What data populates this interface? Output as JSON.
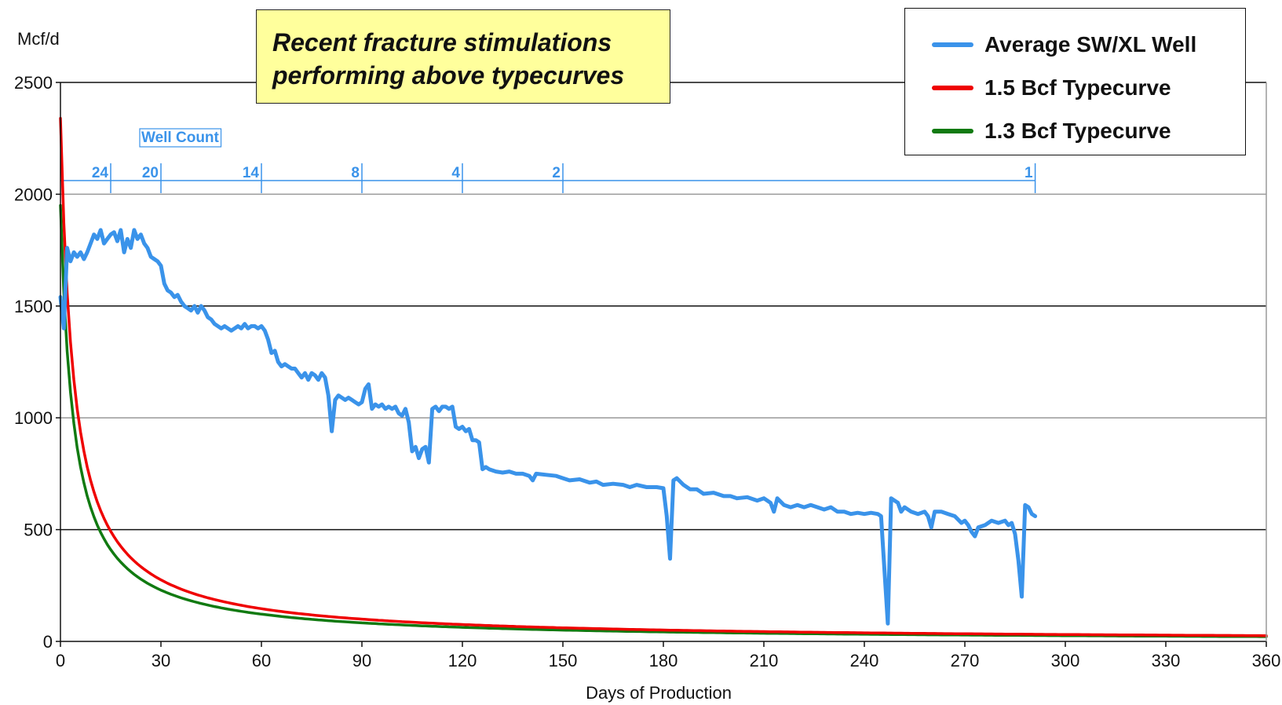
{
  "chart_data": {
    "type": "line",
    "title": "",
    "ylabel": "Mcf/d",
    "xlabel": "Days of Production",
    "xlim": [
      0,
      360
    ],
    "ylim": [
      0,
      2500
    ],
    "x_ticks": [
      0,
      30,
      60,
      90,
      120,
      150,
      180,
      210,
      240,
      270,
      300,
      330,
      360
    ],
    "y_ticks": [
      0,
      500,
      1000,
      1500,
      2000,
      2500
    ],
    "grid": true,
    "legend_position": "top-right",
    "annotation": [
      "Recent fracture stimulations",
      "performing above typecurves"
    ],
    "well_count": {
      "label": "Well Count",
      "ticks_x": [
        15,
        30,
        60,
        90,
        120,
        150,
        291
      ],
      "labels": [
        {
          "text": "24",
          "x": 15
        },
        {
          "text": "20",
          "x": 30
        },
        {
          "text": "14",
          "x": 60
        },
        {
          "text": "8",
          "x": 90
        },
        {
          "text": "4",
          "x": 120
        },
        {
          "text": "2",
          "x": 150
        },
        {
          "text": "1",
          "x": 291
        }
      ]
    },
    "series": [
      {
        "name": "Average SW/XL Well",
        "color": "#3a93ea",
        "points": [
          [
            0,
            1540
          ],
          [
            1,
            1400
          ],
          [
            2,
            1760
          ],
          [
            3,
            1700
          ],
          [
            4,
            1740
          ],
          [
            5,
            1720
          ],
          [
            6,
            1740
          ],
          [
            7,
            1710
          ],
          [
            8,
            1740
          ],
          [
            9,
            1780
          ],
          [
            10,
            1820
          ],
          [
            11,
            1800
          ],
          [
            12,
            1840
          ],
          [
            13,
            1780
          ],
          [
            14,
            1800
          ],
          [
            15,
            1820
          ],
          [
            16,
            1830
          ],
          [
            17,
            1790
          ],
          [
            18,
            1840
          ],
          [
            19,
            1740
          ],
          [
            20,
            1800
          ],
          [
            21,
            1760
          ],
          [
            22,
            1840
          ],
          [
            23,
            1800
          ],
          [
            24,
            1820
          ],
          [
            25,
            1780
          ],
          [
            26,
            1760
          ],
          [
            27,
            1720
          ],
          [
            28,
            1710
          ],
          [
            29,
            1700
          ],
          [
            30,
            1680
          ],
          [
            31,
            1600
          ],
          [
            32,
            1570
          ],
          [
            33,
            1560
          ],
          [
            34,
            1540
          ],
          [
            35,
            1550
          ],
          [
            36,
            1520
          ],
          [
            37,
            1500
          ],
          [
            38,
            1490
          ],
          [
            39,
            1480
          ],
          [
            40,
            1500
          ],
          [
            41,
            1470
          ],
          [
            42,
            1500
          ],
          [
            43,
            1480
          ],
          [
            44,
            1450
          ],
          [
            45,
            1440
          ],
          [
            46,
            1420
          ],
          [
            47,
            1410
          ],
          [
            48,
            1400
          ],
          [
            49,
            1410
          ],
          [
            50,
            1400
          ],
          [
            51,
            1390
          ],
          [
            52,
            1400
          ],
          [
            53,
            1410
          ],
          [
            54,
            1400
          ],
          [
            55,
            1420
          ],
          [
            56,
            1400
          ],
          [
            57,
            1410
          ],
          [
            58,
            1410
          ],
          [
            59,
            1400
          ],
          [
            60,
            1410
          ],
          [
            61,
            1390
          ],
          [
            62,
            1350
          ],
          [
            63,
            1290
          ],
          [
            64,
            1300
          ],
          [
            65,
            1250
          ],
          [
            66,
            1230
          ],
          [
            67,
            1240
          ],
          [
            68,
            1230
          ],
          [
            69,
            1220
          ],
          [
            70,
            1220
          ],
          [
            71,
            1200
          ],
          [
            72,
            1180
          ],
          [
            73,
            1200
          ],
          [
            74,
            1170
          ],
          [
            75,
            1200
          ],
          [
            76,
            1190
          ],
          [
            77,
            1170
          ],
          [
            78,
            1200
          ],
          [
            79,
            1180
          ],
          [
            80,
            1100
          ],
          [
            81,
            940
          ],
          [
            82,
            1080
          ],
          [
            83,
            1100
          ],
          [
            84,
            1090
          ],
          [
            85,
            1080
          ],
          [
            86,
            1090
          ],
          [
            87,
            1080
          ],
          [
            88,
            1070
          ],
          [
            89,
            1060
          ],
          [
            90,
            1070
          ],
          [
            91,
            1130
          ],
          [
            92,
            1150
          ],
          [
            93,
            1040
          ],
          [
            94,
            1060
          ],
          [
            95,
            1050
          ],
          [
            96,
            1060
          ],
          [
            97,
            1040
          ],
          [
            98,
            1050
          ],
          [
            99,
            1040
          ],
          [
            100,
            1050
          ],
          [
            101,
            1020
          ],
          [
            102,
            1010
          ],
          [
            103,
            1040
          ],
          [
            104,
            980
          ],
          [
            105,
            850
          ],
          [
            106,
            870
          ],
          [
            107,
            820
          ],
          [
            108,
            860
          ],
          [
            109,
            870
          ],
          [
            110,
            800
          ],
          [
            111,
            1040
          ],
          [
            112,
            1050
          ],
          [
            113,
            1030
          ],
          [
            114,
            1050
          ],
          [
            115,
            1050
          ],
          [
            116,
            1040
          ],
          [
            117,
            1050
          ],
          [
            118,
            960
          ],
          [
            119,
            950
          ],
          [
            120,
            960
          ],
          [
            121,
            940
          ],
          [
            122,
            950
          ],
          [
            123,
            900
          ],
          [
            124,
            900
          ],
          [
            125,
            890
          ],
          [
            126,
            770
          ],
          [
            127,
            780
          ],
          [
            128,
            770
          ],
          [
            130,
            760
          ],
          [
            132,
            755
          ],
          [
            134,
            760
          ],
          [
            136,
            750
          ],
          [
            138,
            750
          ],
          [
            140,
            740
          ],
          [
            141,
            720
          ],
          [
            142,
            750
          ],
          [
            145,
            745
          ],
          [
            148,
            740
          ],
          [
            150,
            730
          ],
          [
            152,
            720
          ],
          [
            155,
            725
          ],
          [
            158,
            710
          ],
          [
            160,
            715
          ],
          [
            162,
            700
          ],
          [
            165,
            705
          ],
          [
            168,
            700
          ],
          [
            170,
            690
          ],
          [
            172,
            700
          ],
          [
            175,
            690
          ],
          [
            178,
            690
          ],
          [
            180,
            685
          ],
          [
            181,
            560
          ],
          [
            182,
            370
          ],
          [
            183,
            720
          ],
          [
            184,
            730
          ],
          [
            186,
            700
          ],
          [
            188,
            680
          ],
          [
            190,
            680
          ],
          [
            192,
            660
          ],
          [
            195,
            665
          ],
          [
            198,
            650
          ],
          [
            200,
            650
          ],
          [
            202,
            640
          ],
          [
            205,
            645
          ],
          [
            208,
            630
          ],
          [
            210,
            640
          ],
          [
            212,
            620
          ],
          [
            213,
            580
          ],
          [
            214,
            640
          ],
          [
            216,
            610
          ],
          [
            218,
            600
          ],
          [
            220,
            610
          ],
          [
            222,
            600
          ],
          [
            224,
            610
          ],
          [
            226,
            600
          ],
          [
            228,
            590
          ],
          [
            230,
            600
          ],
          [
            232,
            580
          ],
          [
            234,
            580
          ],
          [
            236,
            570
          ],
          [
            238,
            575
          ],
          [
            240,
            570
          ],
          [
            242,
            575
          ],
          [
            244,
            570
          ],
          [
            245,
            560
          ],
          [
            246,
            320
          ],
          [
            247,
            80
          ],
          [
            248,
            640
          ],
          [
            249,
            630
          ],
          [
            250,
            620
          ],
          [
            251,
            580
          ],
          [
            252,
            600
          ],
          [
            254,
            580
          ],
          [
            256,
            570
          ],
          [
            258,
            580
          ],
          [
            259,
            560
          ],
          [
            260,
            510
          ],
          [
            261,
            580
          ],
          [
            263,
            580
          ],
          [
            265,
            570
          ],
          [
            267,
            560
          ],
          [
            269,
            530
          ],
          [
            270,
            540
          ],
          [
            271,
            520
          ],
          [
            272,
            490
          ],
          [
            273,
            470
          ],
          [
            274,
            510
          ],
          [
            276,
            520
          ],
          [
            278,
            540
          ],
          [
            280,
            530
          ],
          [
            282,
            540
          ],
          [
            283,
            520
          ],
          [
            284,
            530
          ],
          [
            285,
            480
          ],
          [
            286,
            360
          ],
          [
            287,
            200
          ],
          [
            288,
            610
          ],
          [
            289,
            600
          ],
          [
            290,
            570
          ],
          [
            291,
            560
          ]
        ]
      },
      {
        "name": "1.5 Bcf Typecurve",
        "color": "#ef0000",
        "model": {
          "qi": 2340,
          "b": 1.0,
          "Di": 0.25
        }
      },
      {
        "name": "1.3 Bcf Typecurve",
        "color": "#117a11",
        "model": {
          "qi": 1950,
          "b": 1.0,
          "Di": 0.25
        }
      }
    ]
  }
}
